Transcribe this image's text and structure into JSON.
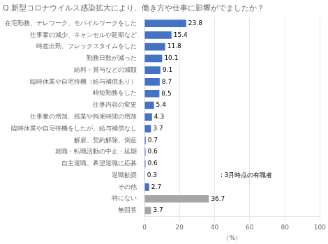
{
  "chart_data": {
    "type": "bar",
    "orientation": "horizontal",
    "title": "Q.新型コロナウイルス感染拡大により、働き方や仕事に影響がでましたか？",
    "categories": [
      "在宅勤務、テレワーク、モバイルワークをした",
      "仕事量の減少、キャンセルや延期など",
      "時差出勤、フレックスタイムをした",
      "勤務日数が減った",
      "給料・賞与などの減額",
      "臨時休業や自宅待機（給与補償あり）",
      "時短勤務をした",
      "仕事内容の変更",
      "仕事量の増加、残業や拘束時間の増加",
      "臨時休業や自宅待機をしたが、給与補償なし",
      "解雇、契約解除、倒産",
      "就職・転職活動の中止・延期",
      "自主退職、希望退職に応募",
      "退職勧奨",
      "その他",
      "特にない",
      "無回答"
    ],
    "values": [
      23.8,
      15.4,
      11.8,
      10.1,
      9.1,
      8.7,
      8.5,
      5.4,
      4.3,
      3.7,
      0.7,
      0.6,
      0.6,
      0.3,
      2.7,
      36.7,
      3.7
    ],
    "colors": [
      "#4472C4",
      "#4472C4",
      "#4472C4",
      "#4472C4",
      "#4472C4",
      "#4472C4",
      "#4472C4",
      "#4472C4",
      "#4472C4",
      "#4472C4",
      "#4472C4",
      "#4472C4",
      "#4472C4",
      "#4472C4",
      "#4472C4",
      "#A6A6A6",
      "#A6A6A6"
    ],
    "xlabel": "（%）",
    "xlim": [
      0,
      100
    ],
    "xticks": [
      0,
      20,
      40,
      60,
      80,
      100
    ],
    "grid": true,
    "data_labels": true,
    "annotation": "：3月時点の有職者"
  }
}
